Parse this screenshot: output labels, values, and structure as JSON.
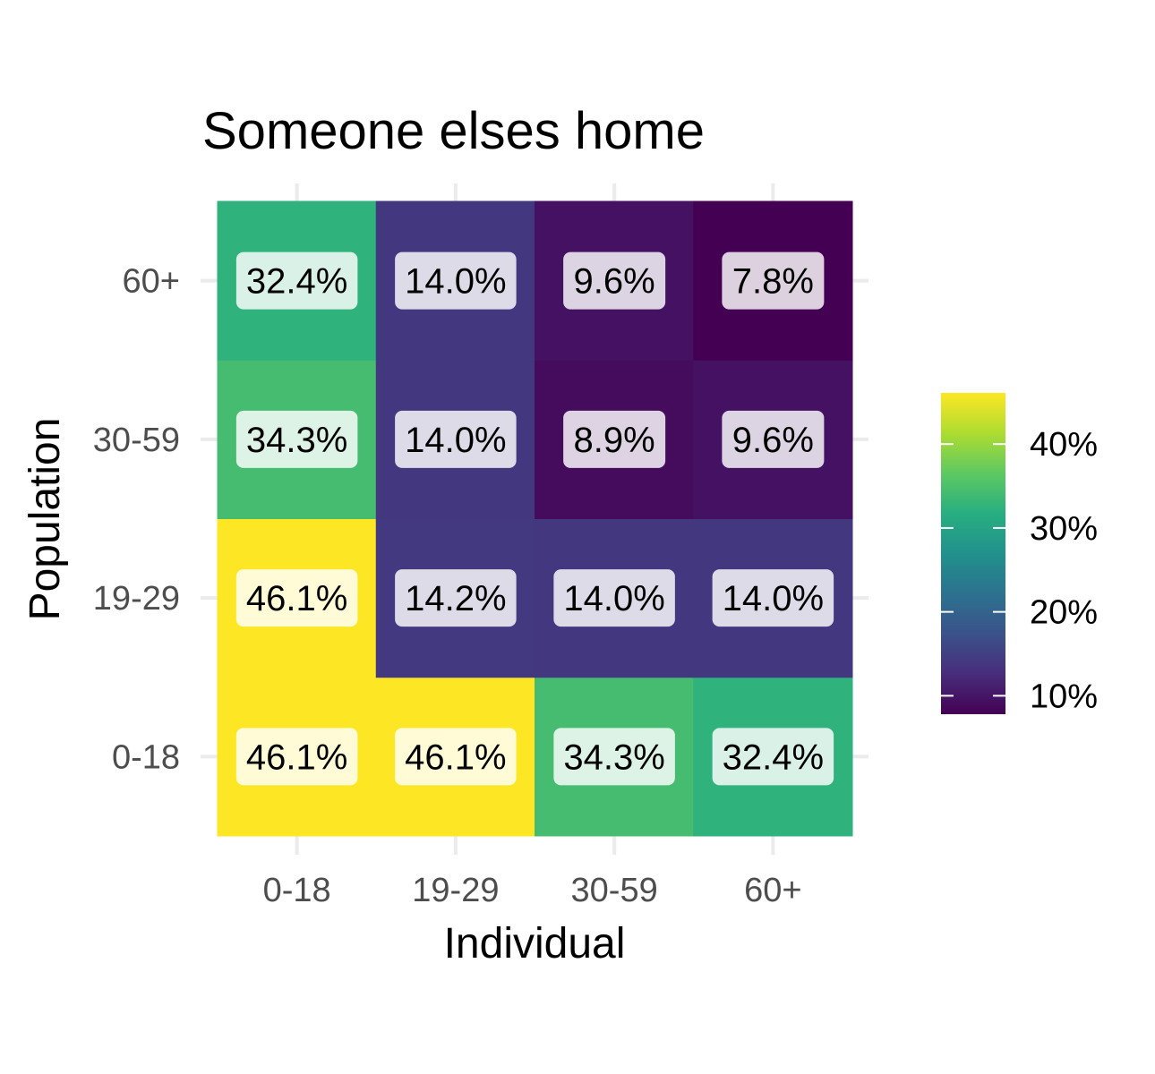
{
  "chart_data": {
    "type": "heatmap",
    "title": "Someone elses home",
    "xlabel": "Individual",
    "ylabel": "Population",
    "x_categories": [
      "0-18",
      "19-29",
      "30-59",
      "60+"
    ],
    "y_categories": [
      "0-18",
      "19-29",
      "30-59",
      "60+"
    ],
    "values": [
      [
        46.1,
        46.1,
        34.3,
        32.4
      ],
      [
        46.1,
        14.2,
        14.0,
        14.0
      ],
      [
        34.3,
        14.0,
        8.9,
        9.6
      ],
      [
        32.4,
        14.0,
        9.6,
        7.8
      ]
    ],
    "labels": [
      [
        "46.1%",
        "46.1%",
        "34.3%",
        "32.4%"
      ],
      [
        "46.1%",
        "14.2%",
        "14.0%",
        "14.0%"
      ],
      [
        "34.3%",
        "14.0%",
        "8.9%",
        "9.6%"
      ],
      [
        "32.4%",
        "14.0%",
        "9.6%",
        "7.8%"
      ]
    ],
    "colorscale": "viridis",
    "color_range": [
      7.8,
      46.1
    ],
    "legend": {
      "placement": "right",
      "ticks": [
        10,
        20,
        30,
        40
      ],
      "tick_labels": [
        "10%",
        "20%",
        "30%",
        "40%"
      ]
    },
    "grid": true
  }
}
